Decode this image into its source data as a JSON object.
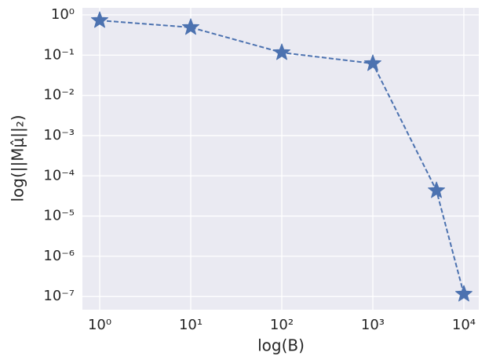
{
  "chart_data": {
    "type": "line",
    "xlabel": "log(B)",
    "ylabel": "log(||Mμ̂||₂)",
    "x": [
      1,
      10,
      100,
      1000,
      5000,
      10000
    ],
    "values": [
      0.73,
      0.49,
      0.116,
      0.062,
      4.3e-05,
      1.15e-07
    ],
    "color": "#4c72b0",
    "xscale": "log",
    "yscale": "log",
    "grid": true,
    "xlim": [
      0.646,
      14590
    ],
    "ylim": [
      4.7e-08,
      1.5
    ],
    "xticks": [
      {
        "value": 1,
        "label": "10⁰"
      },
      {
        "value": 10,
        "label": "10¹"
      },
      {
        "value": 100,
        "label": "10²"
      },
      {
        "value": 1000,
        "label": "10³"
      },
      {
        "value": 10000,
        "label": "10⁴"
      }
    ],
    "yticks": [
      {
        "value": 1,
        "label": "10⁰"
      },
      {
        "value": 0.1,
        "label": "10⁻¹"
      },
      {
        "value": 0.01,
        "label": "10⁻²"
      },
      {
        "value": 0.001,
        "label": "10⁻³"
      },
      {
        "value": 0.0001,
        "label": "10⁻⁴"
      },
      {
        "value": 1e-05,
        "label": "10⁻⁵"
      },
      {
        "value": 1e-06,
        "label": "10⁻⁶"
      },
      {
        "value": 1e-07,
        "label": "10⁻⁷"
      }
    ]
  }
}
